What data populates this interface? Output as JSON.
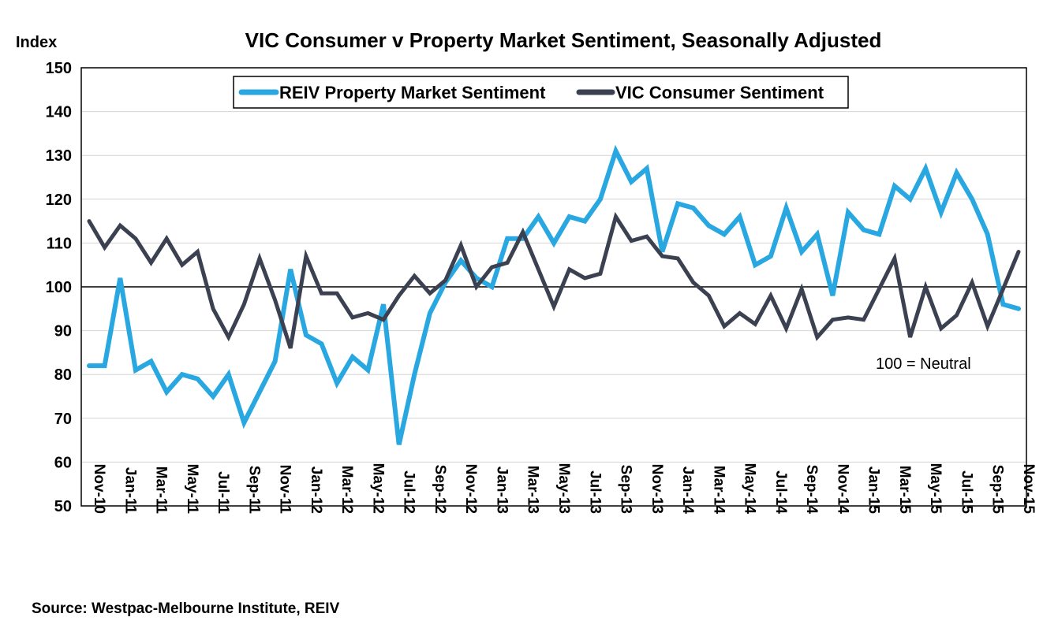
{
  "chart_data": {
    "type": "line",
    "title": "VIC Consumer v Property Market Sentiment, Seasonally Adjusted",
    "ylabel": "Index",
    "ylim": [
      50,
      150
    ],
    "yticks": [
      50,
      60,
      70,
      80,
      90,
      100,
      110,
      120,
      130,
      140,
      150
    ],
    "grid": true,
    "legend_position": "top",
    "reference_line": {
      "value": 100,
      "label": "100 = Neutral"
    },
    "source": "Source:  Westpac-Melbourne Institute, REIV",
    "x": [
      "Nov-10",
      "Dec-10",
      "Jan-11",
      "Feb-11",
      "Mar-11",
      "Apr-11",
      "May-11",
      "Jun-11",
      "Jul-11",
      "Aug-11",
      "Sep-11",
      "Oct-11",
      "Nov-11",
      "Dec-11",
      "Jan-12",
      "Feb-12",
      "Mar-12",
      "Apr-12",
      "May-12",
      "Jun-12",
      "Jul-12",
      "Aug-12",
      "Sep-12",
      "Oct-12",
      "Nov-12",
      "Dec-12",
      "Jan-13",
      "Feb-13",
      "Mar-13",
      "Apr-13",
      "May-13",
      "Jun-13",
      "Jul-13",
      "Aug-13",
      "Sep-13",
      "Oct-13",
      "Nov-13",
      "Dec-13",
      "Jan-14",
      "Feb-14",
      "Mar-14",
      "Apr-14",
      "May-14",
      "Jun-14",
      "Jul-14",
      "Aug-14",
      "Sep-14",
      "Oct-14",
      "Nov-14",
      "Dec-14",
      "Jan-15",
      "Feb-15",
      "Mar-15",
      "Apr-15",
      "May-15",
      "Jun-15",
      "Jul-15",
      "Aug-15",
      "Sep-15",
      "Oct-15",
      "Nov-15"
    ],
    "xtick_labels": [
      "Nov-10",
      "Jan-11",
      "Mar-11",
      "May-11",
      "Jul-11",
      "Sep-11",
      "Nov-11",
      "Jan-12",
      "Mar-12",
      "May-12",
      "Jul-12",
      "Sep-12",
      "Nov-12",
      "Jan-13",
      "Mar-13",
      "May-13",
      "Jul-13",
      "Sep-13",
      "Nov-13",
      "Jan-14",
      "Mar-14",
      "May-14",
      "Jul-14",
      "Sep-14",
      "Nov-14",
      "Jan-15",
      "Mar-15",
      "May-15",
      "Jul-15",
      "Sep-15",
      "Nov-15"
    ],
    "series": [
      {
        "name": "REIV Property Market Sentiment",
        "color": "#29a7e1",
        "values": [
          82,
          82,
          102,
          81,
          83,
          76,
          80,
          79,
          75,
          80,
          69,
          76,
          83,
          104,
          89,
          87,
          78,
          84,
          81,
          96,
          64,
          80,
          94,
          101,
          106,
          102,
          100,
          111,
          111,
          116,
          110,
          116,
          115,
          120,
          131,
          124,
          127,
          108,
          119,
          118,
          114,
          112,
          116,
          105,
          107,
          118,
          108,
          112,
          98,
          117,
          113,
          112,
          123,
          120,
          127,
          117,
          126,
          120,
          112,
          96,
          95
        ]
      },
      {
        "name": "VIC Consumer Sentiment",
        "color": "#3b4150",
        "values": [
          115,
          109,
          114,
          111,
          105.5,
          111,
          105,
          108,
          95,
          88.5,
          96,
          106.5,
          97,
          86,
          107,
          98.5,
          98.5,
          93,
          94,
          92.5,
          98,
          102.5,
          98.5,
          101.5,
          109.5,
          100,
          104.5,
          105.5,
          112.5,
          104,
          95.5,
          104,
          102,
          103,
          116,
          110.5,
          111.5,
          107,
          106.5,
          101,
          98,
          91,
          94,
          91.5,
          98,
          90.5,
          99.5,
          88.5,
          92.5,
          93,
          92.5,
          99.5,
          106.5,
          88.5,
          100,
          90.5,
          93.5,
          101,
          91,
          99.5,
          108
        ]
      }
    ]
  }
}
